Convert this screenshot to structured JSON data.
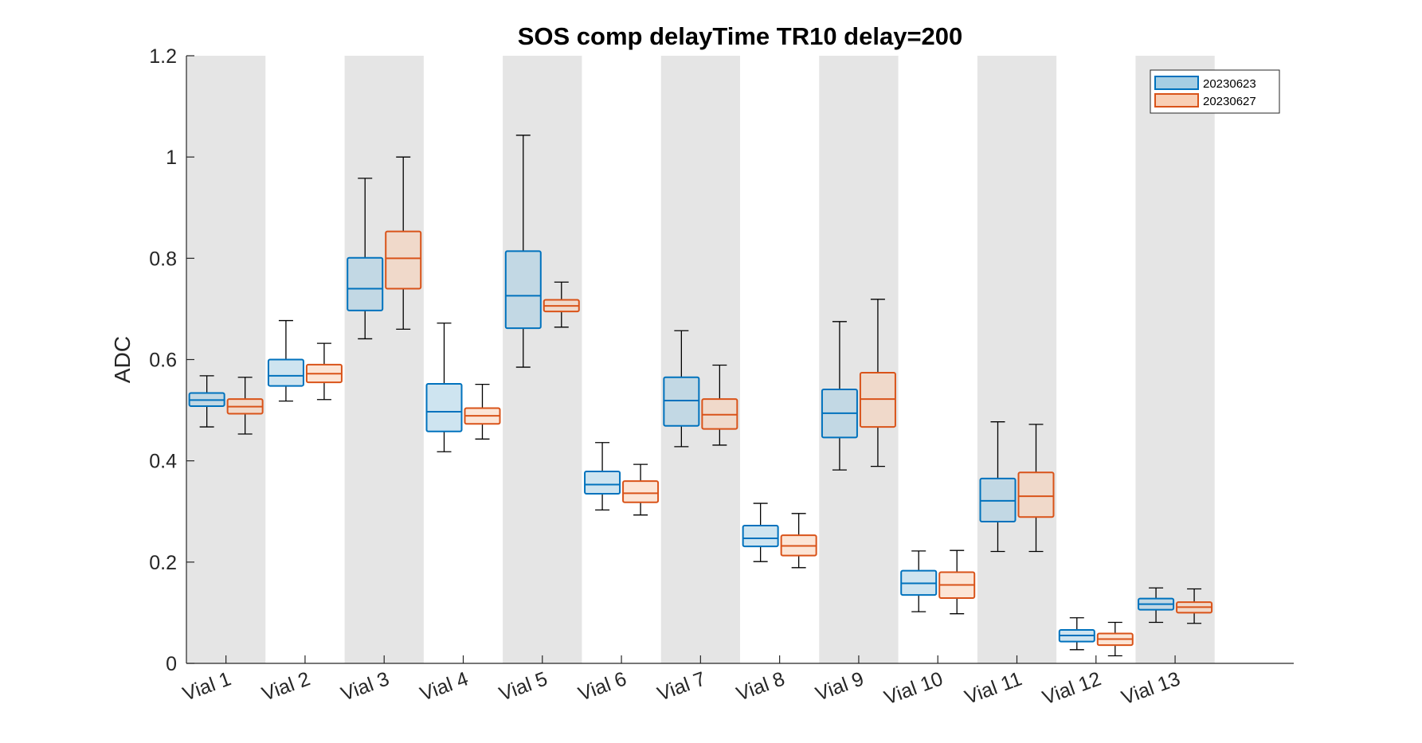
{
  "chart_data": {
    "type": "box",
    "title": "SOS comp delayTime TR10 delay=200",
    "xlabel": "",
    "ylabel": "ADC",
    "ylim": [
      0,
      1.2
    ],
    "yticks": [
      {
        "value": 0,
        "label": "0"
      },
      {
        "value": 0.2,
        "label": "0.2"
      },
      {
        "value": 0.4,
        "label": "0.4"
      },
      {
        "value": 0.6,
        "label": "0.6"
      },
      {
        "value": 0.8,
        "label": "0.8"
      },
      {
        "value": 1.0,
        "label": "1"
      },
      {
        "value": 1.2,
        "label": "1.2"
      }
    ],
    "categories": [
      "Vial 1",
      "Vial 2",
      "Vial 3",
      "Vial 4",
      "Vial 5",
      "Vial 6",
      "Vial 7",
      "Vial 8",
      "Vial 9",
      "Vial 10",
      "Vial 11",
      "Vial 12",
      "Vial 13"
    ],
    "shaded_categories": [
      "Vial 1",
      "Vial 3",
      "Vial 5",
      "Vial 7",
      "Vial 9",
      "Vial 11",
      "Vial 13"
    ],
    "grid": false,
    "legend_position": "top-right",
    "series": [
      {
        "name": "20230623",
        "edge_color": "#0072BD",
        "fill_color": "#A6CEE3",
        "boxes": [
          {
            "whisker_low": 0.467,
            "q1": 0.508,
            "median": 0.52,
            "q3": 0.534,
            "whisker_high": 0.568
          },
          {
            "whisker_low": 0.518,
            "q1": 0.548,
            "median": 0.568,
            "q3": 0.6,
            "whisker_high": 0.677
          },
          {
            "whisker_low": 0.641,
            "q1": 0.697,
            "median": 0.74,
            "q3": 0.801,
            "whisker_high": 0.958
          },
          {
            "whisker_low": 0.418,
            "q1": 0.458,
            "median": 0.497,
            "q3": 0.552,
            "whisker_high": 0.672
          },
          {
            "whisker_low": 0.585,
            "q1": 0.662,
            "median": 0.726,
            "q3": 0.814,
            "whisker_high": 1.043
          },
          {
            "whisker_low": 0.303,
            "q1": 0.335,
            "median": 0.353,
            "q3": 0.379,
            "whisker_high": 0.436
          },
          {
            "whisker_low": 0.428,
            "q1": 0.469,
            "median": 0.519,
            "q3": 0.565,
            "whisker_high": 0.657
          },
          {
            "whisker_low": 0.201,
            "q1": 0.231,
            "median": 0.247,
            "q3": 0.272,
            "whisker_high": 0.316
          },
          {
            "whisker_low": 0.382,
            "q1": 0.446,
            "median": 0.494,
            "q3": 0.541,
            "whisker_high": 0.675
          },
          {
            "whisker_low": 0.102,
            "q1": 0.135,
            "median": 0.158,
            "q3": 0.183,
            "whisker_high": 0.222
          },
          {
            "whisker_low": 0.221,
            "q1": 0.28,
            "median": 0.321,
            "q3": 0.365,
            "whisker_high": 0.477
          },
          {
            "whisker_low": 0.027,
            "q1": 0.043,
            "median": 0.055,
            "q3": 0.066,
            "whisker_high": 0.09
          },
          {
            "whisker_low": 0.081,
            "q1": 0.106,
            "median": 0.117,
            "q3": 0.128,
            "whisker_high": 0.149
          }
        ]
      },
      {
        "name": "20230627",
        "edge_color": "#D95319",
        "fill_color": "#F9CFB5",
        "boxes": [
          {
            "whisker_low": 0.453,
            "q1": 0.493,
            "median": 0.507,
            "q3": 0.522,
            "whisker_high": 0.565
          },
          {
            "whisker_low": 0.521,
            "q1": 0.555,
            "median": 0.572,
            "q3": 0.59,
            "whisker_high": 0.632
          },
          {
            "whisker_low": 0.66,
            "q1": 0.74,
            "median": 0.8,
            "q3": 0.853,
            "whisker_high": 1.0
          },
          {
            "whisker_low": 0.443,
            "q1": 0.473,
            "median": 0.489,
            "q3": 0.504,
            "whisker_high": 0.551
          },
          {
            "whisker_low": 0.664,
            "q1": 0.695,
            "median": 0.706,
            "q3": 0.718,
            "whisker_high": 0.753
          },
          {
            "whisker_low": 0.293,
            "q1": 0.318,
            "median": 0.336,
            "q3": 0.36,
            "whisker_high": 0.393
          },
          {
            "whisker_low": 0.431,
            "q1": 0.463,
            "median": 0.491,
            "q3": 0.522,
            "whisker_high": 0.589
          },
          {
            "whisker_low": 0.189,
            "q1": 0.213,
            "median": 0.232,
            "q3": 0.253,
            "whisker_high": 0.296
          },
          {
            "whisker_low": 0.389,
            "q1": 0.467,
            "median": 0.522,
            "q3": 0.574,
            "whisker_high": 0.719
          },
          {
            "whisker_low": 0.098,
            "q1": 0.129,
            "median": 0.155,
            "q3": 0.18,
            "whisker_high": 0.223
          },
          {
            "whisker_low": 0.221,
            "q1": 0.289,
            "median": 0.33,
            "q3": 0.377,
            "whisker_high": 0.472
          },
          {
            "whisker_low": 0.015,
            "q1": 0.036,
            "median": 0.048,
            "q3": 0.059,
            "whisker_high": 0.081
          },
          {
            "whisker_low": 0.079,
            "q1": 0.1,
            "median": 0.111,
            "q3": 0.121,
            "whisker_high": 0.147
          }
        ]
      }
    ]
  }
}
